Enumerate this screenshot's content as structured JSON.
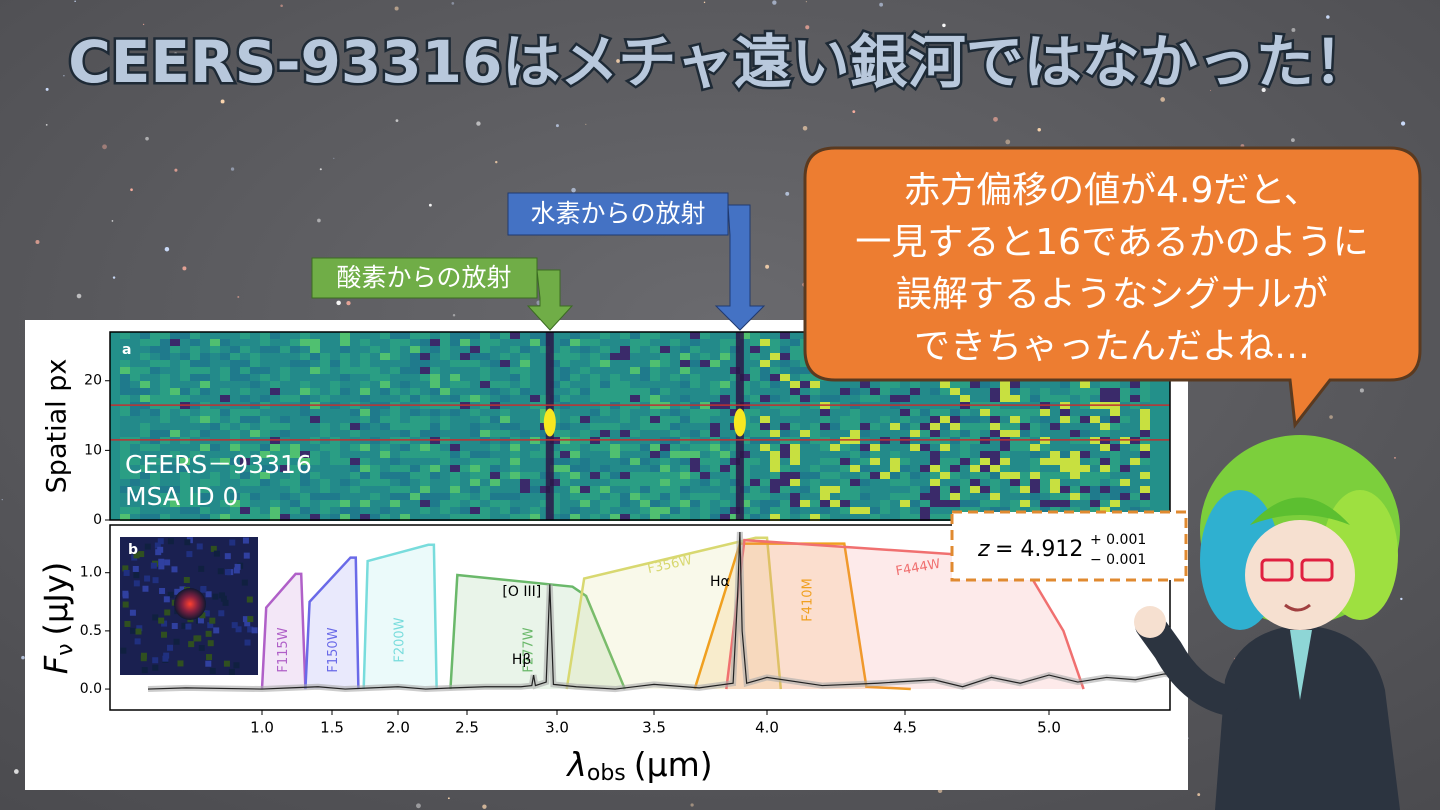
{
  "title": "CEERS-93316はメチャ遠い銀河ではなかった！",
  "callouts": [
    {
      "label": "酸素からの放射"
    },
    {
      "label": "水素からの放射"
    }
  ],
  "speech_bubble": {
    "lines": [
      "赤方偏移の値が4.9だと、",
      "一見すると16であるかのように",
      "誤解するようなシグナルが",
      "できちゃったんだよね…"
    ]
  },
  "chart_data": [
    {
      "type": "spectrum2d",
      "panel_label": "a",
      "ylabel": "Spatial px",
      "ylim": [
        0,
        27
      ],
      "yticks": [
        0,
        10,
        20
      ],
      "xlim": [
        0.6,
        5.42
      ],
      "emission_x": [
        2.96,
        3.88
      ],
      "extraction_rows": [
        11.5,
        16.5
      ],
      "annotation": [
        "CEERS－93316",
        "MSA ID 0"
      ]
    },
    {
      "type": "line",
      "panel_label": "b",
      "xlabel": {
        "symbol": "λ",
        "sub": "obs",
        "unit": "(μm)"
      },
      "ylabel": {
        "symbol": "F",
        "sub": "ν",
        "unit": "(μJy)"
      },
      "xlim": [
        0.6,
        5.42
      ],
      "xticks": [
        {
          "value": 1,
          "label": "1.0"
        },
        {
          "value": 1.5,
          "label": "1.5"
        },
        {
          "value": 2,
          "label": "2.0"
        },
        {
          "value": 2.5,
          "label": "2.5"
        },
        {
          "value": 3,
          "label": "3.0"
        },
        {
          "value": 3.5,
          "label": "3.5"
        },
        {
          "value": 4,
          "label": "4.0"
        },
        {
          "value": 4.5,
          "label": "4.5"
        },
        {
          "value": 5,
          "label": "5.0"
        }
      ],
      "ylim": [
        -0.18,
        1.41
      ],
      "yticks": [
        {
          "value": 0,
          "label": "0.0"
        },
        {
          "value": 0.5,
          "label": "0.5"
        },
        {
          "value": 1,
          "label": "1.0"
        }
      ],
      "spectrum": {
        "color": "#222222",
        "x": [
          0.7,
          0.8,
          1.0,
          1.2,
          1.4,
          1.6,
          1.8,
          2.0,
          2.2,
          2.4,
          2.6,
          2.8,
          2.86,
          2.87,
          2.88,
          2.94,
          2.96,
          2.98,
          3.1,
          3.3,
          3.5,
          3.7,
          3.85,
          3.87,
          3.88,
          3.89,
          3.91,
          4.0,
          4.2,
          4.4,
          4.6,
          4.7,
          4.8,
          4.9,
          5.0,
          5.1,
          5.2,
          5.3,
          5.4,
          5.5
        ],
        "values": [
          0,
          0.01,
          0.0,
          0.01,
          0.02,
          0.0,
          0.01,
          0.02,
          0.0,
          0.01,
          0.02,
          0.02,
          0.03,
          0.12,
          0.03,
          0.06,
          0.9,
          0.04,
          0.02,
          0.0,
          0.04,
          0.01,
          0.05,
          0.8,
          1.35,
          0.5,
          0.05,
          0.1,
          0.03,
          0.05,
          0.08,
          0.02,
          0.1,
          0.05,
          0.12,
          0.06,
          0.1,
          0.08,
          0.13,
          0.1
        ]
      },
      "series": [
        {
          "name": "F115W",
          "color": "#b060c8",
          "x": [
            1.0,
            1.03,
            1.24,
            1.28,
            1.31
          ],
          "values": [
            0,
            0.7,
            0.99,
            0.99,
            0
          ]
        },
        {
          "name": "F150W",
          "color": "#6a6ae8",
          "x": [
            1.31,
            1.34,
            1.64,
            1.68,
            1.7
          ],
          "values": [
            0,
            0.75,
            1.13,
            1.13,
            0
          ]
        },
        {
          "name": "F200W",
          "color": "#78dcdc",
          "x": [
            1.74,
            1.77,
            2.22,
            2.26,
            2.28
          ],
          "values": [
            0,
            1.1,
            1.24,
            1.24,
            0
          ]
        },
        {
          "name": "F277W",
          "color": "#6ab86a",
          "x": [
            2.38,
            2.43,
            3.08,
            3.15,
            3.35
          ],
          "values": [
            0,
            0.98,
            0.88,
            0.8,
            0
          ]
        },
        {
          "name": "F356W",
          "color": "#d8d870",
          "x": [
            3.05,
            3.14,
            3.95,
            4.0,
            4.05
          ],
          "values": [
            0,
            0.95,
            1.3,
            1.3,
            0
          ]
        },
        {
          "name": "F410M",
          "color": "#f0a020",
          "x": [
            3.68,
            3.88,
            4.28,
            4.36,
            4.52
          ],
          "values": [
            0,
            1.25,
            1.25,
            0.02,
            0
          ]
        },
        {
          "name": "F444W",
          "color": "#f07070",
          "x": [
            3.82,
            3.9,
            4.9,
            5.05,
            5.12
          ],
          "values": [
            0,
            1.28,
            1.12,
            0.5,
            0
          ]
        }
      ],
      "line_labels": [
        {
          "label": "[O III]",
          "x": 2.96
        },
        {
          "label": "Hβ",
          "x": 2.87
        },
        {
          "label": "Hα",
          "x": 3.88
        }
      ],
      "redshift": {
        "symbol": "z",
        "text": "= 4.912",
        "plus": "+ 0.001",
        "minus": "− 0.001"
      }
    }
  ]
}
